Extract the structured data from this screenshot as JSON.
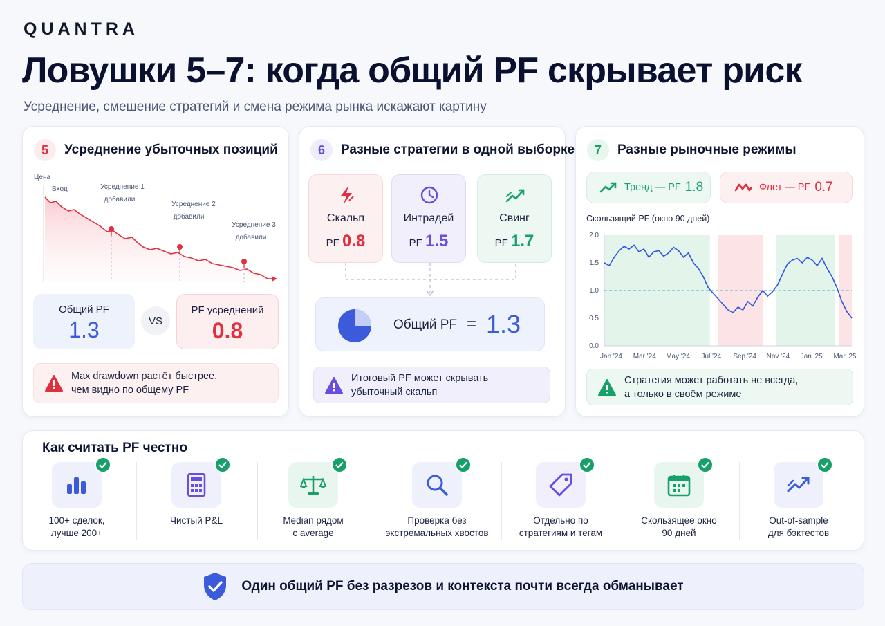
{
  "brand": "QUANTRA",
  "title": "Ловушки 5–7: когда общий PF скрывает риск",
  "subtitle": "Усреднение, смешение стратегий и смена режима рынка искажают картину",
  "colors": {
    "red": "#e0303f",
    "blue": "#3b5bdb",
    "purple": "#6a4de0",
    "green": "#18a06a"
  },
  "card5": {
    "number": "5",
    "title": "Усреднение убыточных позиций",
    "axis_label": "Цена",
    "entry_label": "Вход",
    "averaging": [
      {
        "label": "Усреднение 1",
        "sub": "добавили"
      },
      {
        "label": "Усреднение 2",
        "sub": "добавили"
      },
      {
        "label": "Усреднение 3",
        "sub": "добавили"
      }
    ],
    "overall_label": "Общий PF",
    "overall_value": "1.3",
    "vs": "VS",
    "avg_label": "PF усреднений",
    "avg_value": "0.8",
    "note_line1": "Max drawdown растёт быстрее,",
    "note_line2": "чем видно по общему PF",
    "note_icon": "warning-triangle-icon"
  },
  "card6": {
    "number": "6",
    "title": "Разные стратегии в одной выборке",
    "pf_prefix": "PF",
    "strategies": [
      {
        "name": "Скальп",
        "pf": "0.8",
        "icon": "lightning-icon",
        "color": "#e0303f"
      },
      {
        "name": "Интрадей",
        "pf": "1.5",
        "icon": "clock-icon",
        "color": "#6a4de0"
      },
      {
        "name": "Свинг",
        "pf": "1.7",
        "icon": "trend-up-icon",
        "color": "#18a06a"
      }
    ],
    "total_label": "Общий PF",
    "total_eq": "=",
    "total_value": "1.3",
    "total_icon": "pie-chart-icon",
    "note_line1": "Итоговый PF может скрывать",
    "note_line2": "убыточный скальп",
    "note_icon": "warning-triangle-icon"
  },
  "card7": {
    "number": "7",
    "title": "Разные рыночные режимы",
    "trend_label": "Тренд — PF",
    "trend_value": "1.8",
    "flat_label": "Флет — PF",
    "flat_value": "0.7",
    "chart_title": "Скользящий PF (окно 90 дней)",
    "note_line1": "Стратегия может работать не всегда,",
    "note_line2": "а только в своём режиме",
    "note_icon": "warning-triangle-icon"
  },
  "chart_data": {
    "type": "line",
    "title": "Скользящий PF (окно 90 дней)",
    "x_ticks": [
      "Jan '24",
      "Mar '24",
      "May '24",
      "Jul '24",
      "Sep '24",
      "Nov '24",
      "Jan '25",
      "Mar '25"
    ],
    "y_ticks": [
      "0.0",
      "0.5",
      "1.0",
      "1.5",
      "2.0"
    ],
    "ylim": [
      0,
      2
    ],
    "xlim": [
      0,
      15
    ],
    "reference_line": 1.0,
    "regimes": [
      {
        "type": "trend",
        "from": 0,
        "to": 6.4
      },
      {
        "type": "flat",
        "from": 6.9,
        "to": 9.6
      },
      {
        "type": "trend",
        "from": 10.4,
        "to": 14.0
      },
      {
        "type": "flat",
        "from": 14.2,
        "to": 15
      }
    ],
    "series": [
      {
        "x": [
          0,
          0.3,
          0.6,
          0.9,
          1.2,
          1.5,
          1.8,
          2.1,
          2.4,
          2.7,
          3.0,
          3.3,
          3.6,
          3.9,
          4.2,
          4.5,
          4.8,
          5.1,
          5.4,
          5.7,
          6.0,
          6.3,
          6.6,
          6.9,
          7.2,
          7.5,
          7.8,
          8.1,
          8.4,
          8.7,
          9.0,
          9.3,
          9.6,
          9.9,
          10.2,
          10.5,
          10.8,
          11.1,
          11.4,
          11.7,
          12.0,
          12.3,
          12.6,
          12.9,
          13.2,
          13.5,
          13.8,
          14.1,
          14.4,
          14.7,
          15.0
        ],
        "y": [
          1.5,
          1.45,
          1.6,
          1.72,
          1.8,
          1.75,
          1.82,
          1.7,
          1.75,
          1.6,
          1.7,
          1.72,
          1.62,
          1.68,
          1.78,
          1.72,
          1.6,
          1.68,
          1.5,
          1.4,
          1.25,
          1.05,
          0.95,
          0.85,
          0.75,
          0.65,
          0.6,
          0.7,
          0.65,
          0.8,
          0.72,
          0.88,
          1.0,
          0.9,
          0.98,
          1.1,
          1.3,
          1.48,
          1.55,
          1.58,
          1.5,
          1.6,
          1.55,
          1.45,
          1.58,
          1.4,
          1.25,
          1.05,
          0.8,
          0.62,
          0.5
        ]
      }
    ]
  },
  "checklist": {
    "title": "Как считать PF честно",
    "items": [
      {
        "line1": "100+ сделок,",
        "line2": "лучше 200+",
        "icon": "bar-chart-icon"
      },
      {
        "line1": "Чистый P&L",
        "line2": "",
        "icon": "calculator-icon"
      },
      {
        "line1": "Median рядом",
        "line2": "с average",
        "icon": "scales-icon"
      },
      {
        "line1": "Проверка без",
        "line2": "экстремальных хвостов",
        "icon": "magnifier-icon"
      },
      {
        "line1": "Отдельно по",
        "line2": "стратегиям и тегам",
        "icon": "tag-icon"
      },
      {
        "line1": "Скользящее окно",
        "line2": "90 дней",
        "icon": "calendar-icon"
      },
      {
        "line1": "Out-of-sample",
        "line2": "для бэктестов",
        "icon": "trend-up-icon"
      }
    ]
  },
  "footer": {
    "text": "Один общий PF без разрезов и контекста почти всегда обманывает",
    "icon": "shield-check-icon"
  }
}
